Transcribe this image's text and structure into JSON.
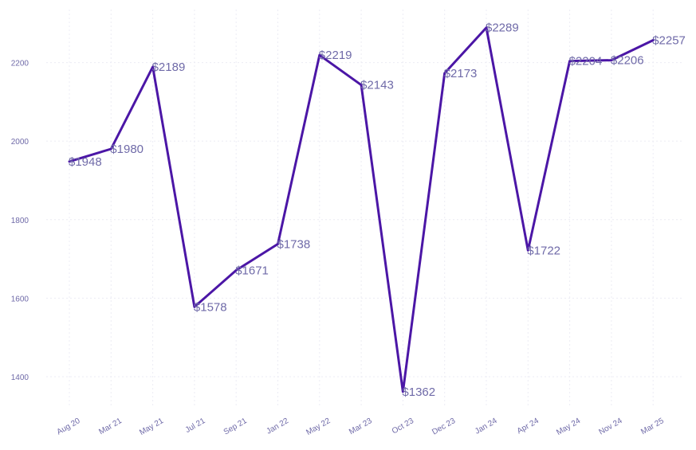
{
  "chart_data": {
    "type": "line",
    "title": "",
    "xlabel": "",
    "ylabel": "",
    "categories": [
      "Aug 20",
      "Mar 21",
      "May 21",
      "Jul 21",
      "Sep 21",
      "Jan 22",
      "May 22",
      "Mar 23",
      "Oct 23",
      "Dec 23",
      "Jan 24",
      "Apr 24",
      "May 24",
      "Nov 24",
      "Mar 25"
    ],
    "values": [
      1948,
      1980,
      2189,
      1578,
      1671,
      1738,
      2219,
      2143,
      1362,
      2173,
      2289,
      1722,
      2204,
      2206,
      2257
    ],
    "data_labels": [
      "$1948",
      "$1980",
      "$2189",
      "$1578",
      "$1671",
      "$1738",
      "$2219",
      "$2143",
      "$1362",
      "$2173",
      "$2289",
      "$1722",
      "$2204",
      "$2206",
      "$2257"
    ],
    "yticks": [
      1400,
      1600,
      1800,
      2000,
      2200
    ],
    "ylim": [
      1325,
      2335
    ],
    "grid": true,
    "line_color": "#4b16a6"
  }
}
